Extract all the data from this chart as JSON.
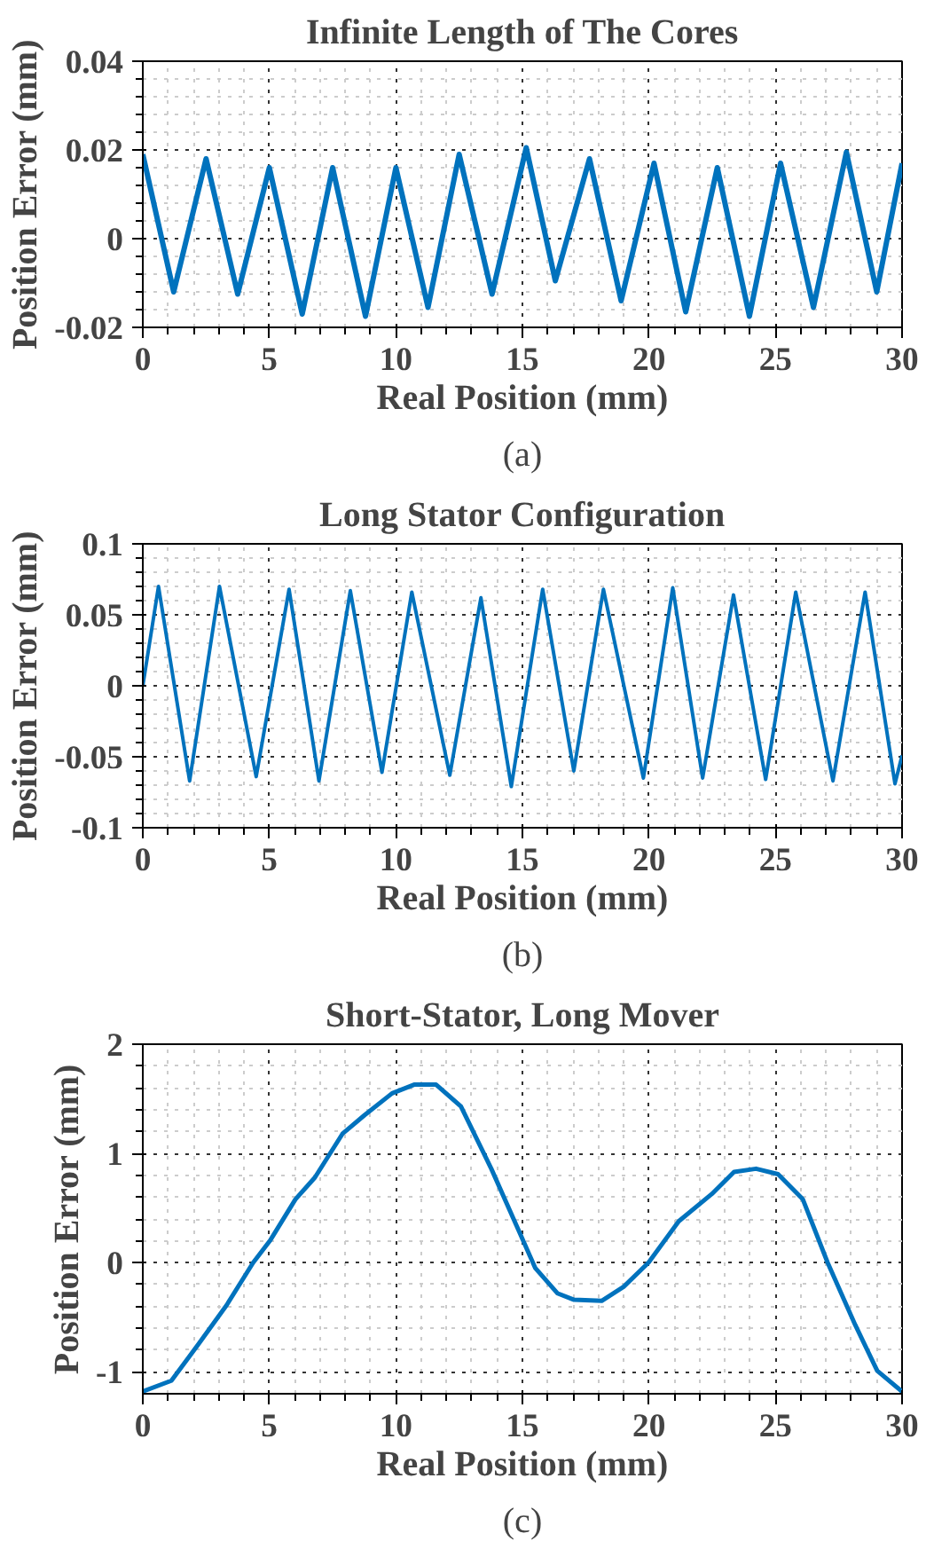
{
  "chart_data": [
    {
      "type": "line",
      "title": "Infinite Length of The Cores",
      "xlabel": "Real Position (mm)",
      "ylabel": "Position Error (mm)",
      "annotations": [
        "(a)"
      ],
      "xlim": [
        0,
        30
      ],
      "ylim": [
        -0.02,
        0.04
      ],
      "xticks": [
        0,
        5,
        10,
        15,
        20,
        25,
        30
      ],
      "yticks": [
        -0.02,
        0,
        0.02,
        0.04
      ],
      "grid": true,
      "line_style": "solid",
      "series": [
        {
          "color": "#0072bd",
          "x": [
            0,
            1.22,
            2.5,
            3.75,
            5.0,
            6.3,
            7.5,
            8.8,
            10.0,
            11.27,
            12.5,
            13.8,
            15.15,
            16.3,
            17.65,
            18.9,
            20.2,
            21.45,
            22.7,
            23.97,
            25.2,
            26.5,
            27.8,
            29.0,
            30
          ],
          "values": [
            0.019,
            -0.012,
            0.018,
            -0.0125,
            0.016,
            -0.017,
            0.016,
            -0.0175,
            0.016,
            -0.0155,
            0.019,
            -0.0125,
            0.0205,
            -0.0095,
            0.018,
            -0.014,
            0.017,
            -0.0165,
            0.016,
            -0.0175,
            0.017,
            -0.0155,
            0.0195,
            -0.012,
            0.017
          ]
        }
      ]
    },
    {
      "type": "line",
      "title": "Long Stator Configuration",
      "xlabel": "Real Position (mm)",
      "ylabel": "Position Error (mm)",
      "annotations": [
        "(b)"
      ],
      "xlim": [
        0,
        30
      ],
      "ylim": [
        -0.1,
        0.1
      ],
      "xticks": [
        0,
        5,
        10,
        15,
        20,
        25,
        30
      ],
      "yticks": [
        -0.1,
        -0.05,
        0,
        0.05,
        0.1
      ],
      "grid": true,
      "line_style": "solid",
      "series": [
        {
          "color": "#0072bd",
          "x": [
            0,
            0.62,
            1.85,
            3.03,
            4.48,
            5.78,
            6.96,
            8.2,
            9.45,
            10.63,
            12.13,
            13.36,
            14.56,
            15.8,
            17.03,
            18.2,
            19.78,
            20.94,
            22.12,
            23.34,
            24.61,
            25.8,
            27.27,
            28.54,
            29.72,
            30
          ],
          "values": [
            0,
            0.07,
            -0.067,
            0.07,
            -0.064,
            0.068,
            -0.067,
            0.067,
            -0.061,
            0.066,
            -0.063,
            0.062,
            -0.071,
            0.068,
            -0.06,
            0.068,
            -0.065,
            0.069,
            -0.065,
            0.064,
            -0.066,
            0.066,
            -0.067,
            0.066,
            -0.069,
            -0.049
          ]
        }
      ]
    },
    {
      "type": "line",
      "title": "Short-Stator, Long Mover",
      "xlabel": "Real Position (mm)",
      "ylabel": "Position Error (mm)",
      "annotations": [
        "(c)"
      ],
      "xlim": [
        0,
        30
      ],
      "ylim": [
        -1.2,
        2
      ],
      "xticks": [
        0,
        5,
        10,
        15,
        20,
        25,
        30
      ],
      "yticks": [
        -1,
        0,
        1,
        2
      ],
      "grid": true,
      "line_style": "solid",
      "series": [
        {
          "color": "#0072bd",
          "x": [
            0,
            1.13,
            2.22,
            3.31,
            4.36,
            5.05,
            6.03,
            6.8,
            7.89,
            8.76,
            9.85,
            10.72,
            11.59,
            12.57,
            13.77,
            14.86,
            15.51,
            16.38,
            17.04,
            18.13,
            19.0,
            19.98,
            21.18,
            22.49,
            23.36,
            24.23,
            25.1,
            26.08,
            27.06,
            28.15,
            29.02,
            30
          ],
          "values": [
            -1.18,
            -1.08,
            -0.74,
            -0.39,
            0,
            0.21,
            0.58,
            0.78,
            1.18,
            1.35,
            1.55,
            1.63,
            1.63,
            1.43,
            0.86,
            0.29,
            -0.05,
            -0.28,
            -0.34,
            -0.35,
            -0.22,
            0,
            0.38,
            0.63,
            0.83,
            0.86,
            0.81,
            0.58,
            0,
            -0.57,
            -0.99,
            -1.18
          ]
        }
      ]
    }
  ]
}
